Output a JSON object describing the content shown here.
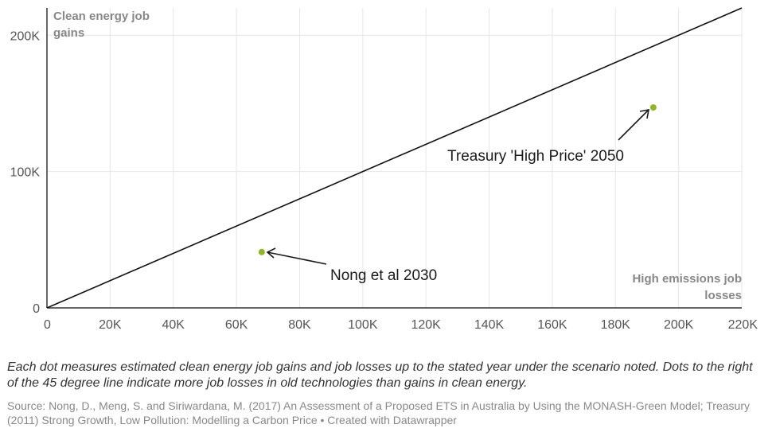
{
  "chart_data": {
    "type": "scatter",
    "xlabel_lines": [
      "High emissions job",
      "losses"
    ],
    "ylabel_lines": [
      "Clean energy job",
      "gains"
    ],
    "xlim": [
      0,
      220000
    ],
    "ylim": [
      0,
      220000
    ],
    "x_ticks": [
      {
        "value": 0,
        "label": "0"
      },
      {
        "value": 20000,
        "label": "20K"
      },
      {
        "value": 40000,
        "label": "40K"
      },
      {
        "value": 60000,
        "label": "60K"
      },
      {
        "value": 80000,
        "label": "80K"
      },
      {
        "value": 100000,
        "label": "100K"
      },
      {
        "value": 120000,
        "label": "120K"
      },
      {
        "value": 140000,
        "label": "140K"
      },
      {
        "value": 160000,
        "label": "160K"
      },
      {
        "value": 180000,
        "label": "180K"
      },
      {
        "value": 200000,
        "label": "200K"
      },
      {
        "value": 220000,
        "label": "220K"
      }
    ],
    "y_ticks": [
      {
        "value": 0,
        "label": "0"
      },
      {
        "value": 100000,
        "label": "100K"
      },
      {
        "value": 200000,
        "label": "200K"
      }
    ],
    "grid": true,
    "reference_line": {
      "x": [
        0,
        220000
      ],
      "y": [
        0,
        220000
      ]
    },
    "points": [
      {
        "label": "Nong et al 2030",
        "x": 68000,
        "y": 41000
      },
      {
        "label": "Treasury 'High Price' 2050",
        "x": 192000,
        "y": 147000
      }
    ],
    "point_color": "#8fb52a"
  },
  "caption": "Each dot measures estimated clean energy job gains and job losses up to the stated year under the scenario noted. Dots to the right of the 45 degree line indicate more job losses in old technologies than gains in clean energy.",
  "source": "Source: Nong, D., Meng, S. and Siriwardana, M. (2017) An Assessment of a Proposed ETS in Australia by Using the MONASH-Green Model; Treasury (2011) Strong Growth, Low Pollution: Modelling a Carbon Price • Created with Datawrapper"
}
